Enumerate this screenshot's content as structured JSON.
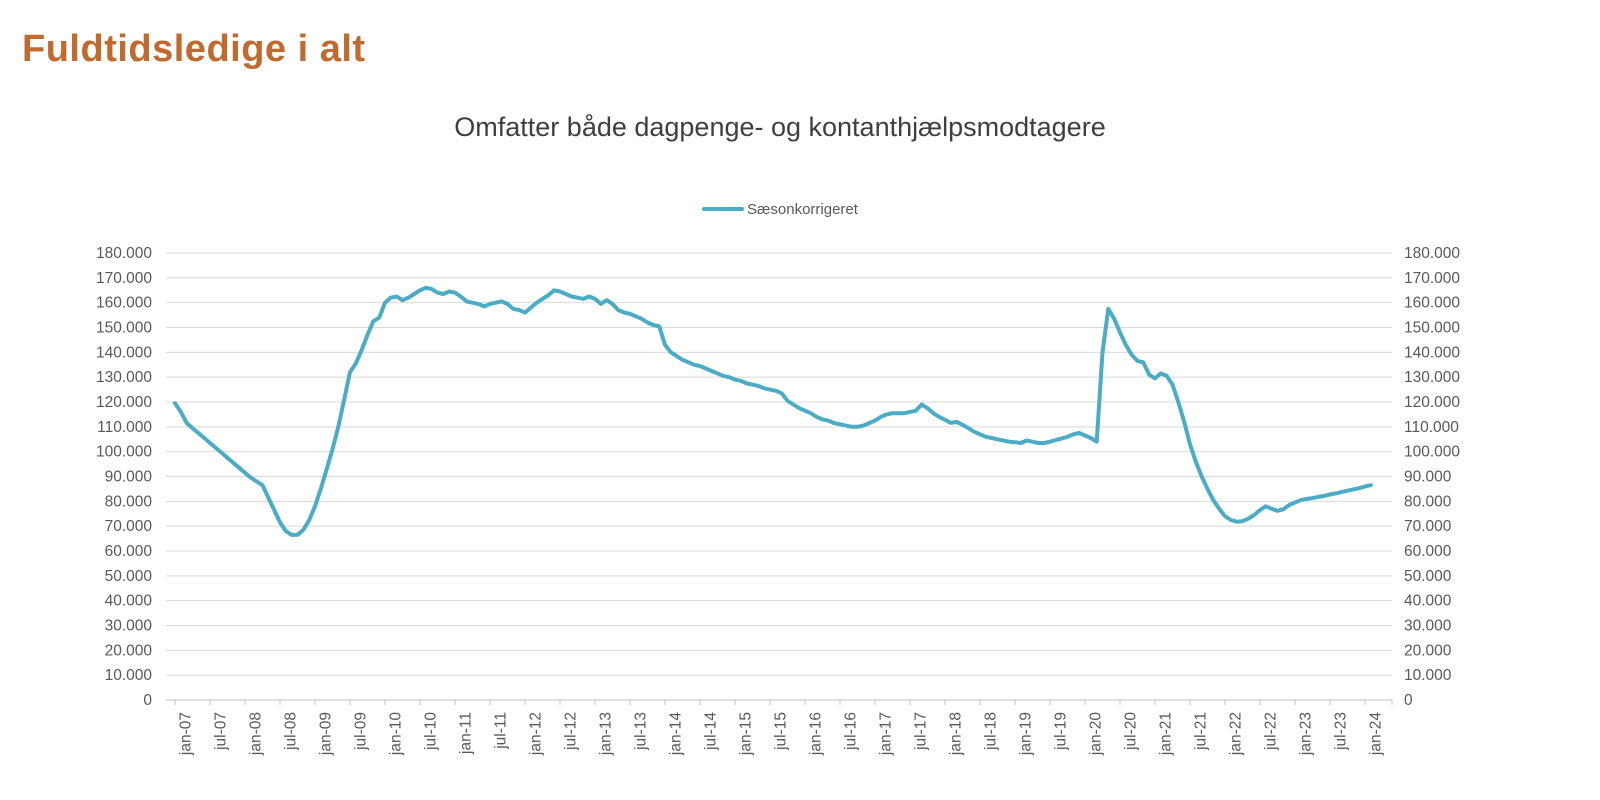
{
  "page": {
    "title": "Fuldtidsledige i alt"
  },
  "chart": {
    "subtitle": "Omfatter både dagpenge- og kontanthjælpsmodtagere",
    "legend": {
      "label": "Sæsonkorrigeret"
    }
  },
  "colors": {
    "title": "#C2692D",
    "subtitle_text": "#3F3F3F",
    "axis_text": "#595959",
    "gridline": "#D9D9D9",
    "axis_line": "#BFBFBF",
    "series": "#4BACC6"
  },
  "chart_data": {
    "type": "line",
    "title": "Omfatter både dagpenge- og kontanthjælpsmodtagere",
    "legend_entries": [
      "Sæsonkorrigeret"
    ],
    "legend_position": "top",
    "grid": "horizontal",
    "dual_y_axis": true,
    "x_start": "jan-07",
    "x_end": "feb-24",
    "frequency": "monthly",
    "x_tick_every": 6,
    "x_tick_labels": [
      "jan-07",
      "jul-07",
      "jan-08",
      "jul-08",
      "jan-09",
      "jul-09",
      "jan-10",
      "jul-10",
      "jan-11",
      "jul-11",
      "jan-12",
      "jul-12",
      "jan-13",
      "jul-13",
      "jan-14",
      "jul-14",
      "jan-15",
      "jul-15",
      "jan-16",
      "jul-16",
      "jan-17",
      "jul-17",
      "jan-18",
      "jul-18",
      "jan-19",
      "jul-19",
      "jan-20",
      "jul-20",
      "jan-21",
      "jul-21",
      "jan-22",
      "jul-22",
      "jan-23",
      "jul-23",
      "jan-24"
    ],
    "ylim": [
      0,
      180000
    ],
    "y_tick_step": 10000,
    "y_tick_labels": [
      "0",
      "10.000",
      "20.000",
      "30.000",
      "40.000",
      "50.000",
      "60.000",
      "70.000",
      "80.000",
      "90.000",
      "100.000",
      "110.000",
      "120.000",
      "130.000",
      "140.000",
      "150.000",
      "160.000",
      "170.000",
      "180.000"
    ],
    "series": [
      {
        "name": "Sæsonkorrigeret",
        "values": [
          119500,
          116000,
          111500,
          109500,
          107500,
          105500,
          103500,
          101500,
          99500,
          97500,
          95500,
          93500,
          91500,
          89500,
          88000,
          86500,
          81500,
          76500,
          71500,
          68000,
          66500,
          66500,
          68500,
          72500,
          78000,
          85000,
          93000,
          101000,
          110000,
          121000,
          132000,
          135500,
          141000,
          147000,
          152500,
          154000,
          160000,
          162000,
          162500,
          161000,
          162000,
          163500,
          165000,
          166000,
          165500,
          164000,
          163500,
          164500,
          164000,
          162500,
          160500,
          160000,
          159500,
          158500,
          159500,
          160000,
          160500,
          159500,
          157500,
          157000,
          156000,
          158000,
          160000,
          161500,
          163000,
          165000,
          164500,
          163500,
          162500,
          162000,
          161500,
          162500,
          161500,
          159500,
          161000,
          159500,
          157000,
          156000,
          155500,
          154500,
          153500,
          152000,
          151000,
          150500,
          143000,
          140000,
          138500,
          137000,
          136000,
          135000,
          134500,
          133500,
          132500,
          131500,
          130500,
          130000,
          129000,
          128500,
          127500,
          127000,
          126500,
          125500,
          125000,
          124500,
          123500,
          120500,
          119000,
          117500,
          116500,
          115500,
          114000,
          113000,
          112500,
          111500,
          111000,
          110500,
          110000,
          110000,
          110500,
          111500,
          112500,
          114000,
          115000,
          115500,
          115500,
          115500,
          116000,
          116500,
          119000,
          117500,
          115500,
          114000,
          112800,
          111600,
          112000,
          110800,
          109500,
          108000,
          107000,
          106000,
          105500,
          105000,
          104500,
          104000,
          103800,
          103500,
          104500,
          104000,
          103500,
          103500,
          104000,
          104700,
          105300,
          106000,
          107000,
          107500,
          106500,
          105500,
          104000,
          140000,
          157500,
          153500,
          148000,
          143000,
          139000,
          136500,
          136000,
          131000,
          129500,
          131500,
          130500,
          127000,
          120000,
          112000,
          103000,
          96000,
          90000,
          85000,
          80500,
          77000,
          74000,
          72500,
          71800,
          72000,
          73000,
          74500,
          76500,
          78000,
          77000,
          76200,
          76800,
          78500,
          79500,
          80500,
          81000,
          81300,
          81800,
          82200,
          82800,
          83200,
          83800,
          84300,
          84800,
          85300,
          86000,
          86500
        ]
      }
    ]
  }
}
